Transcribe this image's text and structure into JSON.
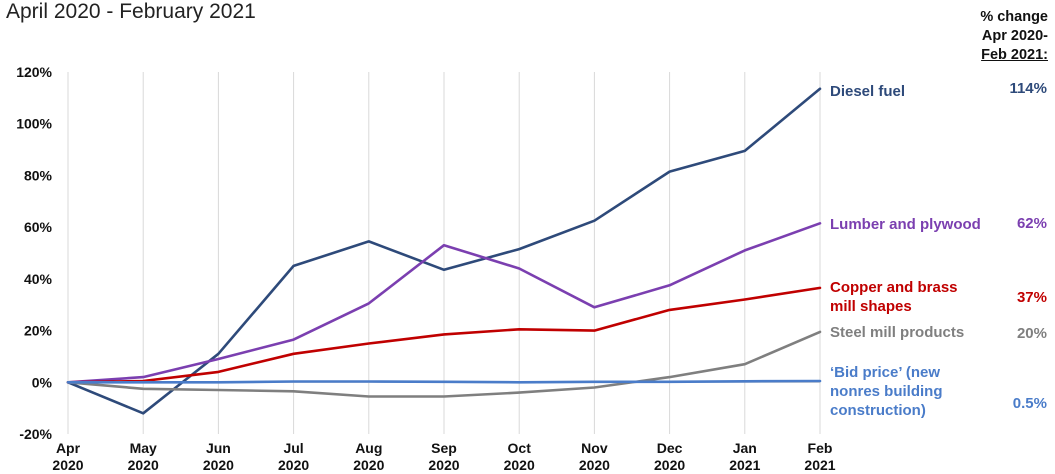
{
  "header": {
    "subtitle": "April 2020 - February 2021",
    "change_header": [
      "% change",
      "Apr 2020-",
      "Feb 2021:"
    ]
  },
  "chart_data": {
    "type": "line",
    "title": "April 2020 - February 2021",
    "categories": [
      "Apr 2020",
      "May 2020",
      "Jun 2020",
      "Jul 2020",
      "Aug 2020",
      "Sep 2020",
      "Oct 2020",
      "Nov 2020",
      "Dec 2020",
      "Jan 2021",
      "Feb 2021"
    ],
    "x_tick_lines": [
      [
        "Apr",
        "2020"
      ],
      [
        "May",
        "2020"
      ],
      [
        "Jun",
        "2020"
      ],
      [
        "Jul",
        "2020"
      ],
      [
        "Aug",
        "2020"
      ],
      [
        "Sep",
        "2020"
      ],
      [
        "Oct",
        "2020"
      ],
      [
        "Nov",
        "2020"
      ],
      [
        "Dec",
        "2020"
      ],
      [
        "Jan",
        "2021"
      ],
      [
        "Feb",
        "2021"
      ]
    ],
    "ylim": [
      -20,
      120
    ],
    "y_ticks": [
      -20,
      0,
      20,
      40,
      60,
      80,
      100,
      120
    ],
    "y_tick_labels": [
      "-20%",
      "0%",
      "20%",
      "40%",
      "60%",
      "80%",
      "100%",
      "120%"
    ],
    "grid": "vertical",
    "series": [
      {
        "name": "Diesel fuel",
        "label_lines": [
          "Diesel fuel"
        ],
        "change": "114%",
        "color": "#2e4a7a",
        "values": [
          0,
          -12,
          11,
          45,
          54.5,
          43.5,
          51.5,
          62.5,
          81.5,
          89.5,
          113.5
        ]
      },
      {
        "name": "Lumber and plywood",
        "label_lines": [
          "Lumber and plywood"
        ],
        "change": "62%",
        "color": "#7b3fb0",
        "values": [
          0,
          2,
          9,
          16.5,
          30.5,
          53,
          44,
          29,
          37.5,
          51,
          61.5
        ]
      },
      {
        "name": "Copper and brass mill shapes",
        "label_lines": [
          "Copper and brass",
          "mill shapes"
        ],
        "change": "37%",
        "color": "#c00000",
        "values": [
          0,
          0.5,
          4,
          11,
          15,
          18.5,
          20.5,
          20,
          28,
          32,
          36.5
        ]
      },
      {
        "name": "Steel mill products",
        "label_lines": [
          "Steel mill products"
        ],
        "change": "20%",
        "color": "#7f7f7f",
        "values": [
          0,
          -2.5,
          -3,
          -3.5,
          -5.5,
          -5.5,
          -4,
          -2,
          2,
          7,
          19.5
        ]
      },
      {
        "name": "'Bid price' (new nonres building construction)",
        "label_lines": [
          "‘Bid price’ (new",
          "nonres building",
          "construction)"
        ],
        "change": "0.5%",
        "color": "#4a7cc9",
        "values": [
          0,
          0,
          0,
          0.3,
          0.3,
          0.2,
          0,
          0.2,
          0.2,
          0.4,
          0.5
        ]
      }
    ]
  }
}
